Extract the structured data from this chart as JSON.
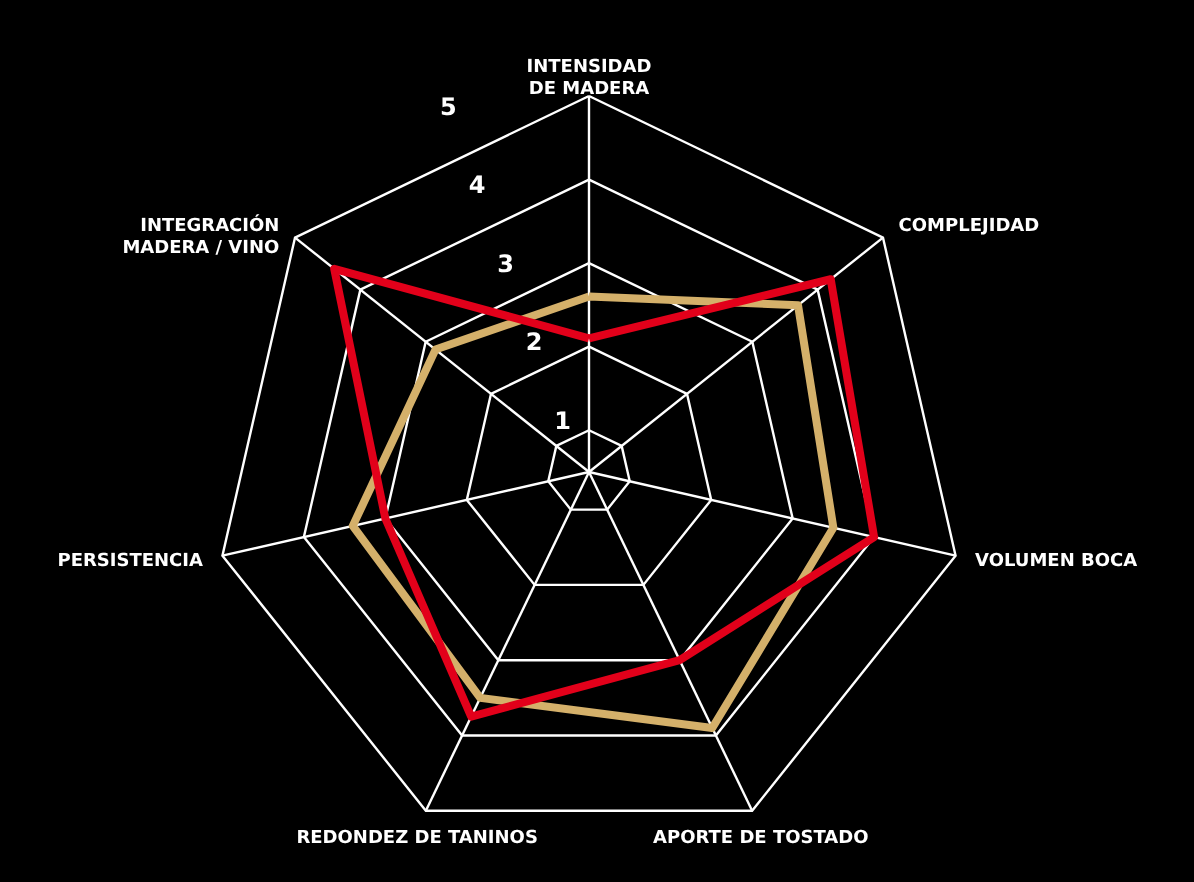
{
  "chart_data": {
    "type": "radar",
    "categories": [
      "INTENSIDAD\nDE MADERA",
      "COMPLEJIDAD",
      "VOLUMEN BOCA",
      "APORTE DE TOSTADO",
      "REDONDEZ DE TANINOS",
      "PERSISTENCIA",
      "INTEGRACIÓN\nMADERA / VINO"
    ],
    "series": [
      {
        "color": "#d4b06a",
        "values": [
          2.6,
          3.7,
          3.5,
          3.9,
          3.5,
          3.4,
          2.85
        ]
      },
      {
        "color": "#e2001a",
        "values": [
          2.1,
          4.2,
          4.0,
          3.0,
          3.75,
          3.0,
          4.4
        ]
      }
    ],
    "ylim": [
      0.5,
      5
    ],
    "yticks": [
      1,
      2,
      3,
      4,
      5
    ],
    "grid": true
  }
}
